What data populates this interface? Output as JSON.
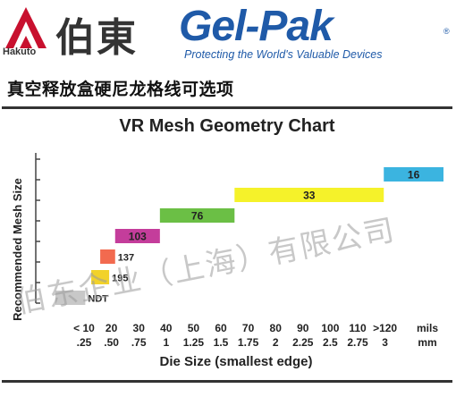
{
  "header": {
    "hakuto_text": "Hakuto",
    "brand_cn": "伯東",
    "gelpak": "Gel-Pak",
    "reg_mark": "®",
    "tagline": "Protecting the World's Valuable Devices"
  },
  "subtitle": "真空释放盒硬尼龙格线可选项",
  "watermark": "伯东企业（上海）有限公司",
  "colors": {
    "brand_blue": "#1f5aa8"
  },
  "chart_data": {
    "type": "bar",
    "title": "VR Mesh Geometry Chart",
    "ylabel": "Recommended Mesh Size",
    "xlabel": "Die Size (smallest edge)",
    "x_tick_labels_mils": [
      "< 10",
      "20",
      "30",
      "40",
      "50",
      "60",
      "70",
      "80",
      "90",
      "100",
      "110",
      ">120"
    ],
    "x_tick_labels_mm": [
      ".25",
      ".50",
      ".75",
      "1",
      "1.25",
      "1.5",
      "1.75",
      "2",
      "2.25",
      "2.5",
      "2.75",
      "3"
    ],
    "x_unit_mils": "mils",
    "x_unit_mm": "mm",
    "grid": false,
    "series": [
      {
        "label": "NDT",
        "x_start": 0,
        "x_end": 10,
        "level": 1,
        "color": "#c8c8c8"
      },
      {
        "label": "195",
        "x_start": 12,
        "x_end": 18,
        "level": 2,
        "color": "#f2d22a"
      },
      {
        "label": "137",
        "x_start": 15,
        "x_end": 20,
        "level": 3,
        "color": "#f26a4f"
      },
      {
        "label": "103",
        "x_start": 20,
        "x_end": 35,
        "level": 4,
        "color": "#c43d9b"
      },
      {
        "label": "76",
        "x_start": 35,
        "x_end": 60,
        "level": 5,
        "color": "#6bbf45"
      },
      {
        "label": "33",
        "x_start": 60,
        "x_end": 110,
        "level": 6,
        "color": "#f5f22a"
      },
      {
        "label": "16",
        "x_start": 110,
        "x_end": 130,
        "level": 7,
        "color": "#3bb4e0"
      }
    ]
  }
}
